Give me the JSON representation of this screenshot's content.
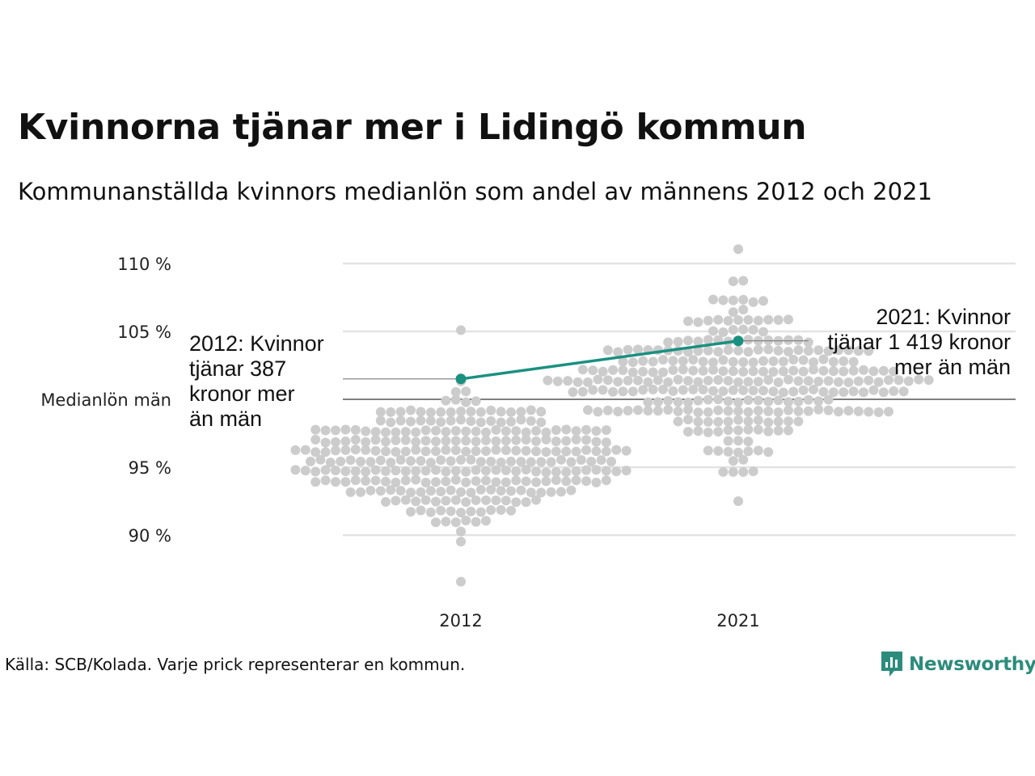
{
  "title": "Kvinnorna tjänar mer i Lidingö kommun",
  "subtitle": "Kommunanställda kvinnors medianlön som andel av männens 2012 och 2021",
  "caption": "Källa: SCB/Kolada. Varje prick representerar en kommun.",
  "logo": {
    "text": "Newsworthy",
    "icon": "newsworthy-logo-icon",
    "color": "#2c8c7c"
  },
  "colors": {
    "dots": "#cccccc",
    "highlight": "#1a9080",
    "grid": "#e3e3e3",
    "baseline": "#333333"
  },
  "chart_data": {
    "type": "scatter",
    "subtype": "beeswarm",
    "title": "Kvinnorna tjänar mer i Lidingö kommun",
    "categories": [
      "2012",
      "2021"
    ],
    "ylim": [
      86,
      111.5
    ],
    "yticks": [
      {
        "value": 90,
        "label": "90 %"
      },
      {
        "value": 95,
        "label": "95 %"
      },
      {
        "value": 100,
        "label": "Medianlön män"
      },
      {
        "value": 105,
        "label": "105 %"
      },
      {
        "value": 110,
        "label": "110 %"
      }
    ],
    "distribution": [
      {
        "category": "2012",
        "median": 95.5,
        "sd": 2.3,
        "min": 86.5,
        "max": 105.2,
        "n": 290
      },
      {
        "category": "2021",
        "median": 101.5,
        "sd": 2.6,
        "min": 92.5,
        "max": 111.3,
        "n": 290
      }
    ],
    "series": [
      {
        "name": "Lidingö",
        "points": [
          {
            "x": "2012",
            "y": 101.5
          },
          {
            "x": "2021",
            "y": 104.3
          }
        ]
      }
    ],
    "annotations": [
      {
        "category": "2012",
        "lines": [
          "2012: Kvinnor",
          "tjänar 387",
          "kronor mer",
          "än män"
        ]
      },
      {
        "category": "2021",
        "lines": [
          "2021: Kvinnor",
          "tjänar 1 419 kronor",
          "mer än män"
        ]
      }
    ],
    "grid": true,
    "legend": "none"
  }
}
